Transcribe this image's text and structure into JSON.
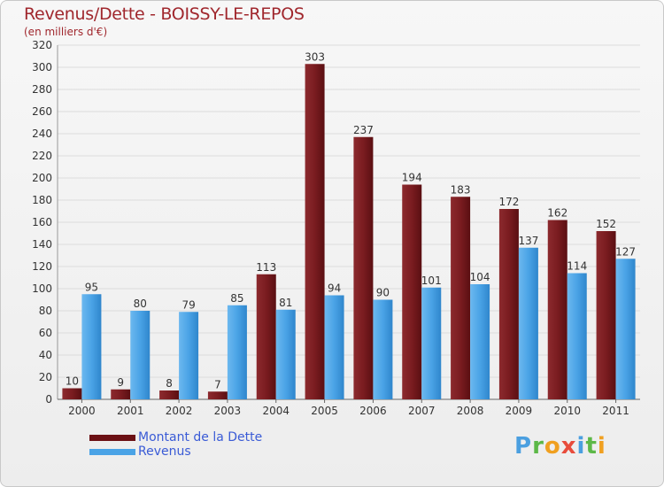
{
  "header": {
    "title": "Revenus/Dette - BOISSY-LE-REPOS",
    "subtitle": "(en milliers d'€)"
  },
  "colors": {
    "dette": "#7a1c20",
    "revenus": "#4aa3e6",
    "title": "#a0272d",
    "legend_text": "#3a5bd6"
  },
  "legend": {
    "items": [
      {
        "label": "Montant de la Dette",
        "color": "#6b1014"
      },
      {
        "label": "Revenus",
        "color": "#4aa3e6"
      }
    ]
  },
  "logo": {
    "text": "Proxiti",
    "letters": [
      {
        "char": "P",
        "color": "#4a9fe0"
      },
      {
        "char": "r",
        "color": "#5cb848"
      },
      {
        "char": "o",
        "color": "#f0a020"
      },
      {
        "char": "x",
        "color": "#e84c3c"
      },
      {
        "char": "i",
        "color": "#4a9fe0"
      },
      {
        "char": "t",
        "color": "#5cb848"
      },
      {
        "char": "i",
        "color": "#f0a020"
      }
    ]
  },
  "chart_data": {
    "type": "bar",
    "categories": [
      "2000",
      "2001",
      "2002",
      "2003",
      "2004",
      "2005",
      "2006",
      "2007",
      "2008",
      "2009",
      "2010",
      "2011"
    ],
    "series": [
      {
        "name": "Montant de la Dette",
        "values": [
          10,
          9,
          8,
          7,
          113,
          303,
          237,
          194,
          183,
          172,
          162,
          152
        ]
      },
      {
        "name": "Revenus",
        "values": [
          95,
          80,
          79,
          85,
          81,
          94,
          90,
          101,
          104,
          137,
          114,
          127
        ]
      }
    ],
    "ylim": [
      0,
      320
    ],
    "yticks": [
      0,
      20,
      40,
      60,
      80,
      100,
      120,
      140,
      160,
      180,
      200,
      220,
      240,
      260,
      280,
      300,
      320
    ],
    "grid": true,
    "legend_position": "bottom-left"
  }
}
